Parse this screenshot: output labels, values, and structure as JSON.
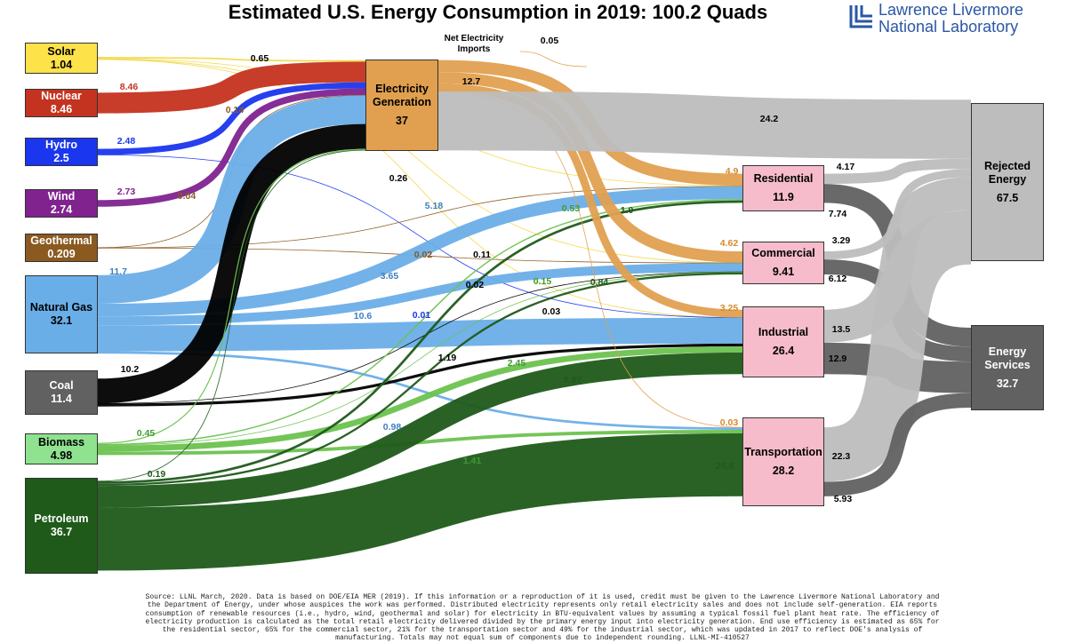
{
  "title": "Estimated U.S. Energy Consumption in 2019: 100.2 Quads",
  "logo": "Lawrence Livermore National Laboratory",
  "nodes": [
    {
      "label": "Solar",
      "value": 1.04,
      "color": "#fde24a",
      "flow_color": "#f3d94c"
    },
    {
      "label": "Nuclear",
      "value": 8.46,
      "color": "#c4331f"
    },
    {
      "label": "Hydro",
      "value": 2.5,
      "color": "#1a36ef"
    },
    {
      "label": "Wind",
      "value": 2.74,
      "color": "#80238f"
    },
    {
      "label": "Geothermal",
      "value": 0.209,
      "color": "#8a5a21"
    },
    {
      "label": "Natural Gas",
      "value": 32.1,
      "color": "#6aaee8"
    },
    {
      "label": "Coal",
      "value": 11.4,
      "color": "#616161",
      "flow_color": "#000000"
    },
    {
      "label": "Biomass",
      "value": 4.98,
      "color": "#8fe28f",
      "flow_color": "#6cc24f"
    },
    {
      "label": "Petroleum",
      "value": 36.7,
      "color": "#1f5a1a"
    },
    {
      "label": "Net Electricity Imports"
    },
    {
      "label": "Electricity Generation",
      "value": 37,
      "color": "#e0a050",
      "delivered": 12.7
    },
    {
      "label": "Residential",
      "value": 11.9,
      "color": "#f6bccb"
    },
    {
      "label": "Commercial",
      "value": 9.41,
      "color": "#f6bccb"
    },
    {
      "label": "Industrial",
      "value": 26.4,
      "color": "#f6bccb"
    },
    {
      "label": "Transportation",
      "value": 28.2,
      "color": "#f6bccb"
    },
    {
      "label": "Rejected Energy",
      "value": 67.5,
      "color": "#bdbdbd"
    },
    {
      "label": "Energy Services",
      "value": 32.7,
      "color": "#616161"
    }
  ],
  "flows": [
    {
      "from": "Solar",
      "to": "Electricity Generation",
      "value": 0.65
    },
    {
      "from": "Solar",
      "to": "Residential",
      "value": 0.26
    },
    {
      "from": "Solar",
      "to": "Commercial",
      "value": 0.11
    },
    {
      "from": "Solar",
      "to": "Industrial",
      "value": 0.03
    },
    {
      "from": "Nuclear",
      "to": "Electricity Generation",
      "value": 8.46
    },
    {
      "from": "Hydro",
      "to": "Electricity Generation",
      "value": 2.48
    },
    {
      "from": "Hydro",
      "to": "Industrial",
      "value": 0.01
    },
    {
      "from": "Wind",
      "to": "Electricity Generation",
      "value": 2.73
    },
    {
      "from": "Geothermal",
      "to": "Electricity Generation",
      "value": 0.14
    },
    {
      "from": "Geothermal",
      "to": "Residential",
      "value": 0.04
    },
    {
      "from": "Geothermal",
      "to": "Commercial",
      "value": 0.02
    },
    {
      "from": "Natural Gas",
      "to": "Electricity Generation",
      "value": 11.7
    },
    {
      "from": "Natural Gas",
      "to": "Residential",
      "value": 5.18
    },
    {
      "from": "Natural Gas",
      "to": "Commercial",
      "value": 3.65
    },
    {
      "from": "Natural Gas",
      "to": "Industrial",
      "value": 10.6
    },
    {
      "from": "Natural Gas",
      "to": "Transportation",
      "value": 0.98
    },
    {
      "from": "Coal",
      "to": "Electricity Generation",
      "value": 10.2
    },
    {
      "from": "Coal",
      "to": "Commercial",
      "value": 0.02
    },
    {
      "from": "Coal",
      "to": "Industrial",
      "value": 1.19
    },
    {
      "from": "Biomass",
      "to": "Electricity Generation",
      "value": 0.45
    },
    {
      "from": "Biomass",
      "to": "Residential",
      "value": 0.53
    },
    {
      "from": "Biomass",
      "to": "Commercial",
      "value": 0.15
    },
    {
      "from": "Biomass",
      "to": "Industrial",
      "value": 2.45
    },
    {
      "from": "Biomass",
      "to": "Transportation",
      "value": 1.41
    },
    {
      "from": "Petroleum",
      "to": "Electricity Generation",
      "value": 0.19
    },
    {
      "from": "Petroleum",
      "to": "Residential",
      "value": 1.0,
      "value_label": "1.0"
    },
    {
      "from": "Petroleum",
      "to": "Commercial",
      "value": 0.84
    },
    {
      "from": "Petroleum",
      "to": "Industrial",
      "value": 8.87
    },
    {
      "from": "Petroleum",
      "to": "Transportation",
      "value": 25.8
    },
    {
      "from": "Electricity Generation",
      "to": "Residential",
      "value": 4.9
    },
    {
      "from": "Electricity Generation",
      "to": "Commercial",
      "value": 4.62
    },
    {
      "from": "Electricity Generation",
      "to": "Industrial",
      "value": 3.25
    },
    {
      "from": "Electricity Generation",
      "to": "Transportation",
      "value": 0.03
    },
    {
      "from": "Electricity Generation",
      "to": "Rejected Energy",
      "value": 24.2
    },
    {
      "from": "Residential",
      "to": "Rejected Energy",
      "value": 4.17
    },
    {
      "from": "Residential",
      "to": "Energy Services",
      "value": 7.74
    },
    {
      "from": "Commercial",
      "to": "Rejected Energy",
      "value": 3.29
    },
    {
      "from": "Commercial",
      "to": "Energy Services",
      "value": 6.12
    },
    {
      "from": "Industrial",
      "to": "Rejected Energy",
      "value": 13.5
    },
    {
      "from": "Industrial",
      "to": "Energy Services",
      "value": 12.9
    },
    {
      "from": "Transportation",
      "to": "Rejected Energy",
      "value": 22.3
    },
    {
      "from": "Transportation",
      "to": "Energy Services",
      "value": 5.93
    },
    {
      "from": "Net Electricity Imports",
      "to": "Electricity Generation",
      "value": 0.05
    }
  ],
  "footer": "Source: LLNL March, 2020. Data is based on DOE/EIA MER (2019). If this information or a reproduction of it is used, credit must be given to the Lawrence Livermore National Laboratory and the Department of Energy, under whose auspices the work was performed. Distributed electricity represents only retail electricity sales and does not include self-generation. EIA reports consumption of renewable resources (i.e., hydro, wind, geothermal and solar) for electricity in BTU-equivalent values by assuming a typical fossil fuel plant heat rate. The efficiency of electricity production is calculated as the total retail electricity delivered divided by the primary energy input into electricity generation. End use efficiency is estimated as 65% for the residential sector, 65% for the commercial sector, 21% for the transportation sector and 49% for the industrial sector, which was updated in 2017 to reflect DOE's analysis of manufacturing. Totals may not equal sum of components due to independent rounding. LLNL-MI-410527"
}
